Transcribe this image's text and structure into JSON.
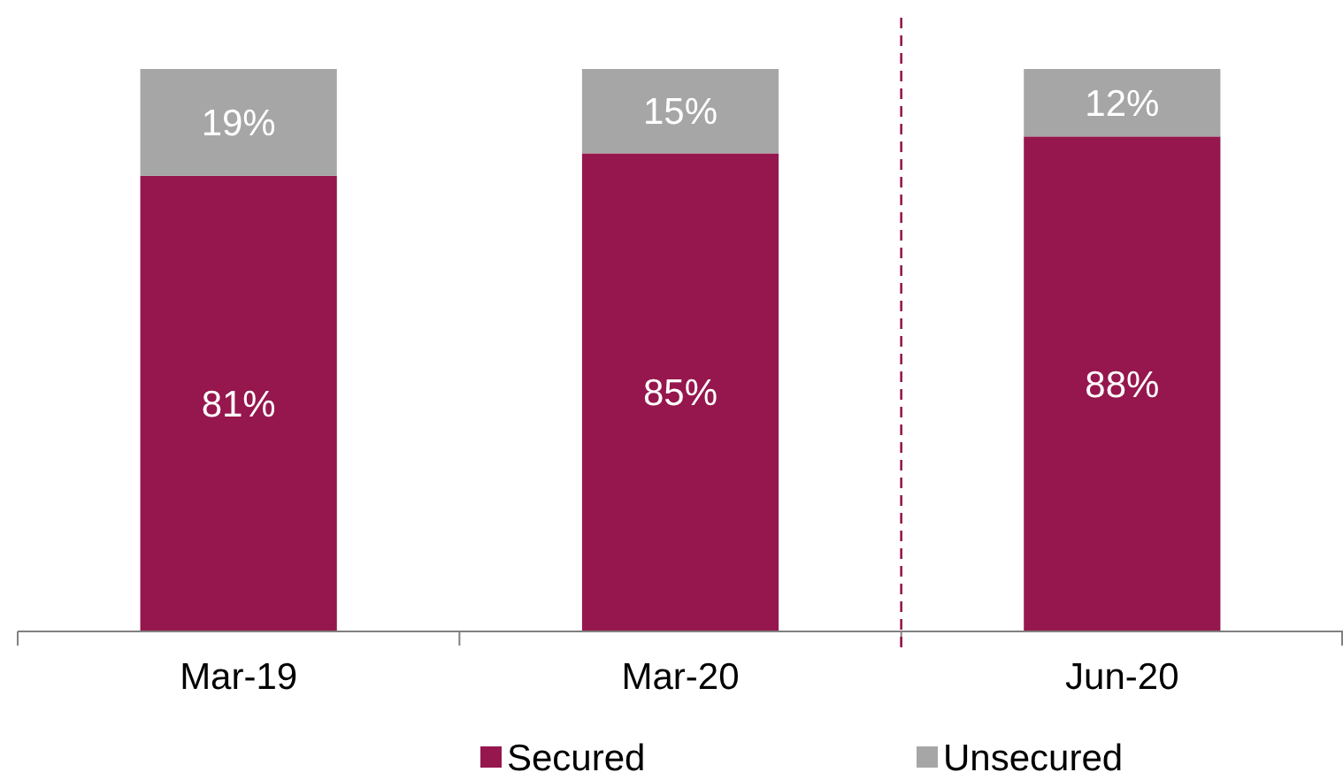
{
  "chart_data": {
    "type": "bar",
    "stacked": true,
    "categories": [
      "Mar-19",
      "Mar-20",
      "Jun-20"
    ],
    "series": [
      {
        "name": "Secured",
        "color": "#95174d",
        "values": [
          81,
          85,
          88
        ],
        "value_labels": [
          "81%",
          "85%",
          "88%"
        ]
      },
      {
        "name": "Unsecured",
        "color": "#a6a6a6",
        "values": [
          19,
          15,
          12
        ],
        "value_labels": [
          "19%",
          "15%",
          "12%"
        ]
      }
    ],
    "ref_lines": [
      {
        "axis": "x",
        "value": "Jun-20",
        "color": "#95174d",
        "line_style": "dashed"
      }
    ],
    "legend": "bottom",
    "grid": false
  }
}
